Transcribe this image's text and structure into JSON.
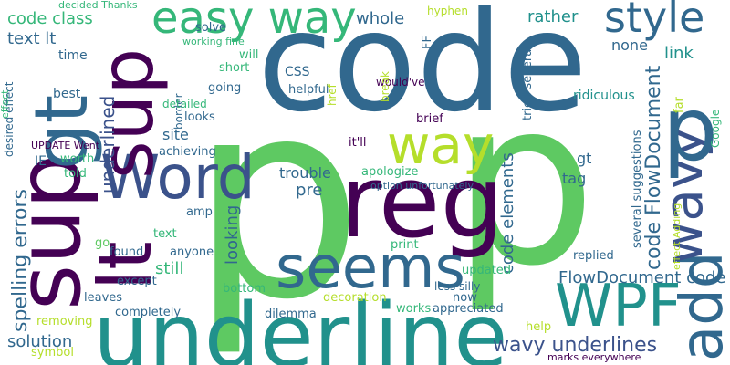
{
  "palette": {
    "purple": "#440154",
    "indigo": "#3b528b",
    "blue": "#31688e",
    "teal": "#21918c",
    "green": "#35b779",
    "lime": "#5ec962",
    "yellow": "#b5de2b"
  },
  "words": [
    {
      "text": "p",
      "color": "#5ec962"
    },
    {
      "text": "p",
      "color": "#5ec962"
    },
    {
      "text": "code",
      "color": "#31688e"
    },
    {
      "text": "underline",
      "color": "#21918c"
    },
    {
      "text": "reg",
      "color": "#440154"
    },
    {
      "text": "seems",
      "color": "#31688e"
    },
    {
      "text": "WPF",
      "color": "#21918c"
    },
    {
      "text": "Word",
      "color": "#3b528b"
    },
    {
      "text": "way",
      "color": "#b5de2b"
    },
    {
      "text": "easy way",
      "color": "#35b779"
    },
    {
      "text": "style",
      "color": "#31688e"
    },
    {
      "text": "sup",
      "color": "#440154"
    },
    {
      "text": "gt",
      "color": "#31688e"
    },
    {
      "text": "lt",
      "color": "#440154"
    },
    {
      "text": "sup",
      "color": "#440154"
    },
    {
      "text": "add",
      "color": "#31688e"
    },
    {
      "text": "wavy",
      "color": "#3b528b"
    },
    {
      "text": "p",
      "color": "#31688e"
    },
    {
      "text": "wavy underlines",
      "color": "#3b528b"
    },
    {
      "text": "code FlowDocument",
      "color": "#31688e"
    },
    {
      "text": "spelling errors",
      "color": "#31688e"
    },
    {
      "text": "underlined",
      "color": "#3b528b"
    },
    {
      "text": "FlowDocument code",
      "color": "#31688e"
    },
    {
      "text": "code class",
      "color": "#35b779"
    },
    {
      "text": "text lt",
      "color": "#31688e"
    },
    {
      "text": "solution",
      "color": "#31688e"
    },
    {
      "text": "code elements",
      "color": "#31688e"
    },
    {
      "text": "whole",
      "color": "#31688e"
    },
    {
      "text": "rather",
      "color": "#21918c"
    },
    {
      "text": "link",
      "color": "#21918c"
    },
    {
      "text": "none",
      "color": "#31688e"
    },
    {
      "text": "pre",
      "color": "#31688e"
    },
    {
      "text": "looking",
      "color": "#31688e"
    },
    {
      "text": "still",
      "color": "#35b779"
    },
    {
      "text": "site",
      "color": "#31688e"
    },
    {
      "text": "trouble",
      "color": "#31688e"
    },
    {
      "text": "tag",
      "color": "#31688e"
    },
    {
      "text": "gt",
      "color": "#31688e"
    },
    {
      "text": "ridiculous",
      "color": "#21918c"
    },
    {
      "text": "CSS",
      "color": "#31688e"
    },
    {
      "text": "time",
      "color": "#31688e"
    },
    {
      "text": "best",
      "color": "#31688e"
    },
    {
      "text": "IE",
      "color": "#31688e"
    },
    {
      "text": "worth",
      "color": "#35b779"
    },
    {
      "text": "told",
      "color": "#35b779"
    },
    {
      "text": "go",
      "color": "#5ec962"
    },
    {
      "text": "found",
      "color": "#31688e"
    },
    {
      "text": "anyone",
      "color": "#31688e"
    },
    {
      "text": "text",
      "color": "#35b779"
    },
    {
      "text": "amp",
      "color": "#31688e"
    },
    {
      "text": "except",
      "color": "#31688e"
    },
    {
      "text": "leaves",
      "color": "#31688e"
    },
    {
      "text": "completely",
      "color": "#31688e"
    },
    {
      "text": "removing",
      "color": "#b5de2b"
    },
    {
      "text": "symbol",
      "color": "#b5de2b"
    },
    {
      "text": "bottom",
      "color": "#35b779"
    },
    {
      "text": "decoration",
      "color": "#b5de2b"
    },
    {
      "text": "dilemma",
      "color": "#31688e"
    },
    {
      "text": "works",
      "color": "#35b779"
    },
    {
      "text": "appreciated",
      "color": "#31688e"
    },
    {
      "text": "now",
      "color": "#31688e"
    },
    {
      "text": "less silly",
      "color": "#31688e"
    },
    {
      "text": "updated",
      "color": "#35b779"
    },
    {
      "text": "print",
      "color": "#35b779"
    },
    {
      "text": "replied",
      "color": "#31688e"
    },
    {
      "text": "help",
      "color": "#b5de2b"
    },
    {
      "text": "marks everywhere",
      "color": "#440154"
    },
    {
      "text": "apologize",
      "color": "#35b779"
    },
    {
      "text": "it'll",
      "color": "#440154"
    },
    {
      "text": "option unfortunately",
      "color": "#31688e"
    },
    {
      "text": "brief",
      "color": "#440154"
    },
    {
      "text": "helpful",
      "color": "#31688e"
    },
    {
      "text": "achieving",
      "color": "#31688e"
    },
    {
      "text": "looks",
      "color": "#31688e"
    },
    {
      "text": "border",
      "color": "#31688e"
    },
    {
      "text": "going",
      "color": "#31688e"
    },
    {
      "text": "detailed",
      "color": "#35b779"
    },
    {
      "text": "short",
      "color": "#35b779"
    },
    {
      "text": "will",
      "color": "#35b779"
    },
    {
      "text": "working fine",
      "color": "#35b779"
    },
    {
      "text": "solve",
      "color": "#31688e"
    },
    {
      "text": "would've",
      "color": "#440154"
    },
    {
      "text": "hyphen",
      "color": "#b5de2b"
    },
    {
      "text": "decided Thanks",
      "color": "#35b779"
    },
    {
      "text": "FF",
      "color": "#31688e"
    },
    {
      "text": "break",
      "color": "#b5de2b"
    },
    {
      "text": "href",
      "color": "#b5de2b"
    },
    {
      "text": "tried several",
      "color": "#31688e"
    },
    {
      "text": "far",
      "color": "#b5de2b"
    },
    {
      "text": "Google",
      "color": "#35b779"
    },
    {
      "text": "several suggestions",
      "color": "#31688e"
    },
    {
      "text": "effect Adding",
      "color": "#b5de2b"
    },
    {
      "text": "UPDATE Went",
      "color": "#440154"
    },
    {
      "text": "desired effect",
      "color": "#31688e"
    },
    {
      "text": "effect",
      "color": "#35b779"
    }
  ]
}
